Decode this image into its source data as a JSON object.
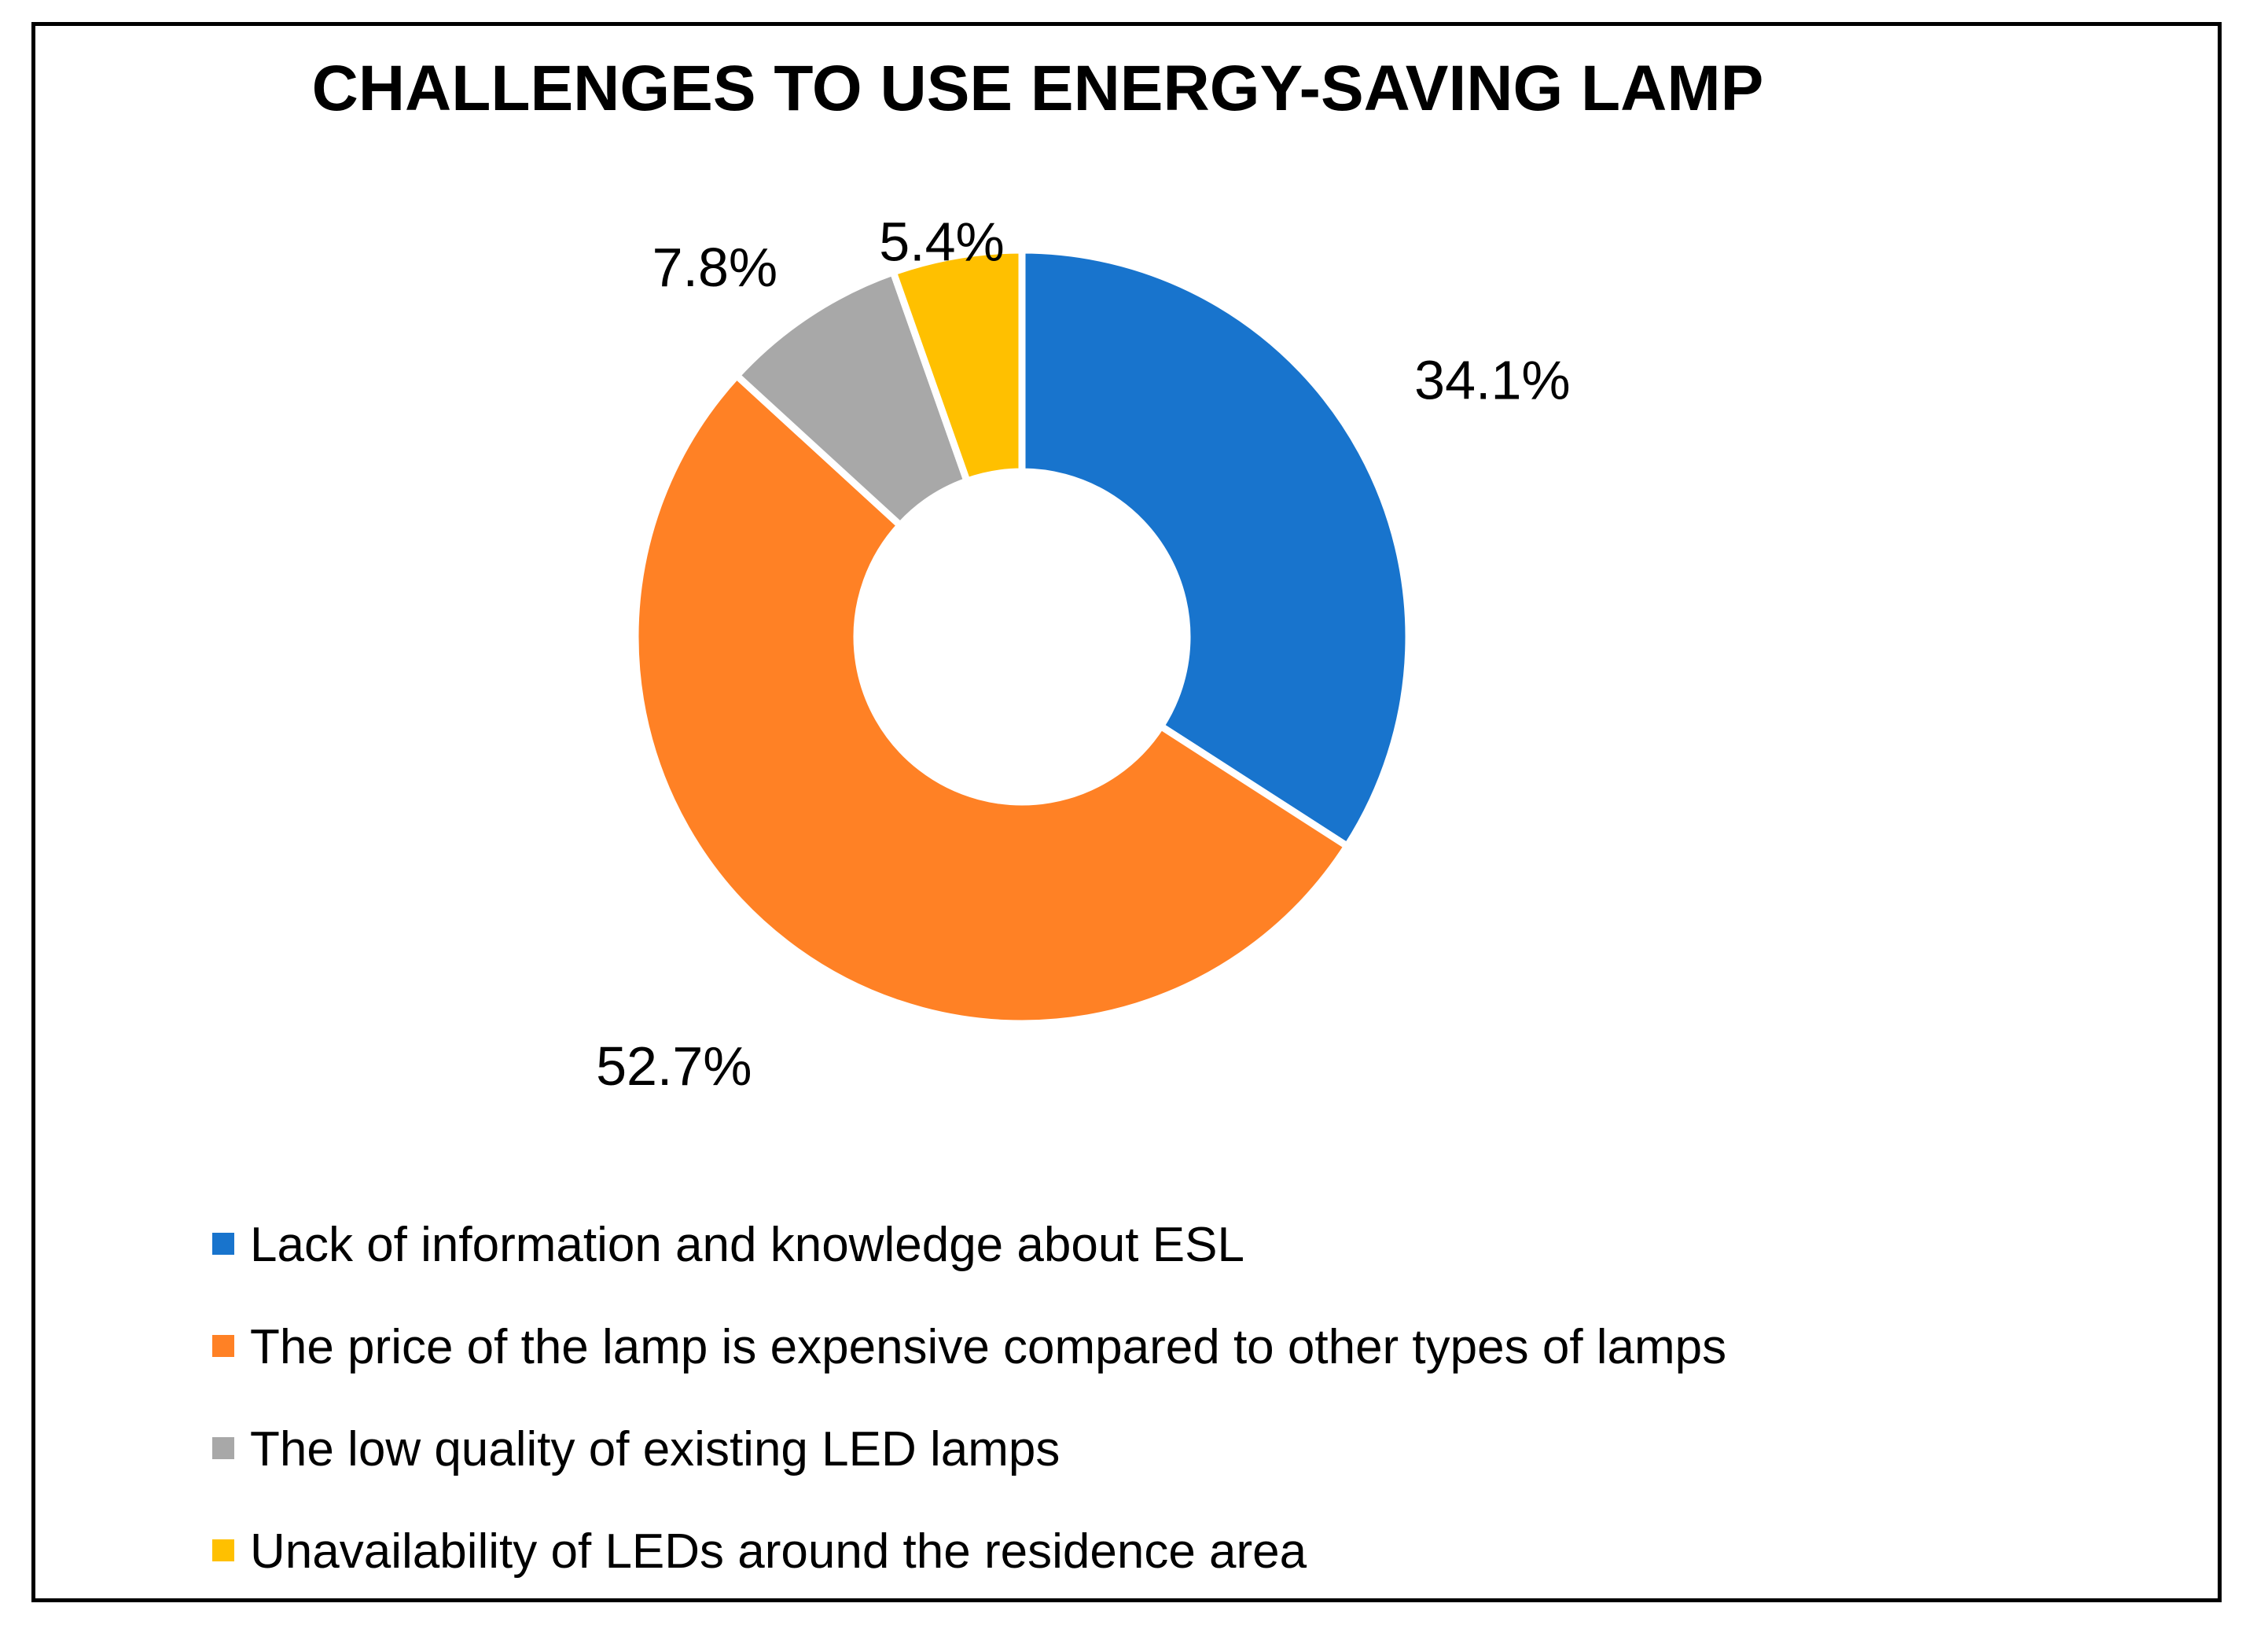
{
  "chart_data": {
    "type": "pie",
    "variant": "donut",
    "title": "CHALLENGES TO USE ENERGY-SAVING LAMP",
    "categories": [
      "Lack of information and knowledge about ESL",
      "The price of the lamp is expensive compared to other types of lamps",
      "The low quality of existing LED lamps",
      "Unavailability of LEDs around the residence area"
    ],
    "values": [
      34.1,
      52.7,
      7.8,
      5.4
    ],
    "data_labels": [
      "34.1%",
      "52.7%",
      "7.8%",
      "5.4%"
    ],
    "colors": [
      "#1874CD",
      "#FF8125",
      "#A8A8A8",
      "#FFC000"
    ],
    "legend_position": "bottom-left"
  }
}
